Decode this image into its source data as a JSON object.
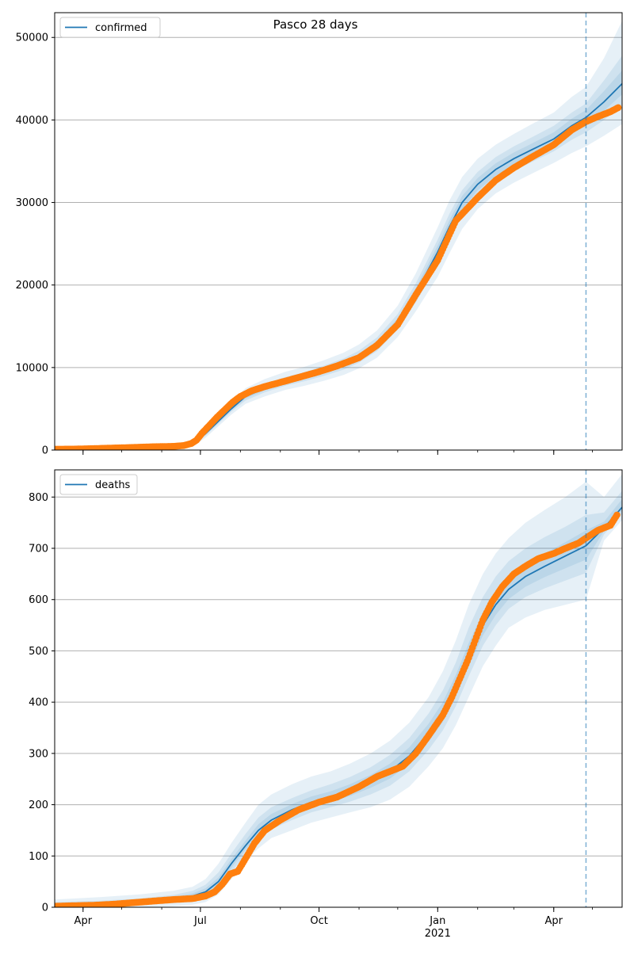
{
  "figure": {
    "title": "Pasco 28 days"
  },
  "colors": {
    "model": "#1f77b4",
    "observed": "#ff7f0e",
    "band": "#1f77b4",
    "grid": "#b0b0b0",
    "forecast_line": "#1f77b4"
  },
  "x_axis": {
    "range": [
      "2020-03-10",
      "2021-05-24"
    ],
    "major_ticks": [
      {
        "date": "2020-04-01",
        "label": "Apr",
        "sublabel": ""
      },
      {
        "date": "2020-07-01",
        "label": "Jul",
        "sublabel": ""
      },
      {
        "date": "2020-10-01",
        "label": "Oct",
        "sublabel": ""
      },
      {
        "date": "2021-01-01",
        "label": "Jan",
        "sublabel": "2021"
      },
      {
        "date": "2021-04-01",
        "label": "Apr",
        "sublabel": ""
      }
    ],
    "forecast_date": "2021-04-26"
  },
  "chart_data": [
    {
      "type": "line",
      "legend": "confirmed",
      "legend_position": "top-left",
      "grid": "y",
      "ylim": [
        0,
        53000
      ],
      "yticks": [
        0,
        10000,
        20000,
        30000,
        40000,
        50000
      ],
      "model": {
        "x": [
          "2020-03-10",
          "2020-04-15",
          "2020-05-15",
          "2020-06-10",
          "2020-06-20",
          "2020-06-26",
          "2020-07-05",
          "2020-07-15",
          "2020-07-25",
          "2020-08-05",
          "2020-08-20",
          "2020-09-05",
          "2020-09-20",
          "2020-10-05",
          "2020-10-20",
          "2020-11-01",
          "2020-11-15",
          "2020-12-01",
          "2020-12-15",
          "2021-01-01",
          "2021-01-10",
          "2021-01-20",
          "2021-02-01",
          "2021-02-15",
          "2021-03-01",
          "2021-03-15",
          "2021-04-01",
          "2021-04-15",
          "2021-04-26",
          "2021-05-10",
          "2021-05-24"
        ],
        "y": [
          100,
          180,
          300,
          400,
          500,
          800,
          2000,
          3500,
          5000,
          6500,
          7500,
          8300,
          8900,
          9600,
          10400,
          11300,
          12800,
          15500,
          19000,
          24000,
          27000,
          30000,
          32200,
          34000,
          35300,
          36400,
          37700,
          39300,
          40300,
          42200,
          44400
        ]
      },
      "bands": [
        {
          "name": "outer",
          "lower": [
            0,
            50,
            150,
            200,
            300,
            500,
            1500,
            2900,
            4300,
            5600,
            6500,
            7300,
            7800,
            8400,
            9100,
            9900,
            11200,
            13700,
            16800,
            21000,
            23800,
            26800,
            29200,
            31100,
            32400,
            33500,
            34800,
            36000,
            36800,
            38100,
            39500
          ],
          "upper": [
            400,
            500,
            600,
            700,
            800,
            1200,
            2600,
            4200,
            5800,
            7500,
            8600,
            9500,
            10100,
            10900,
            11800,
            12800,
            14500,
            17500,
            21400,
            27000,
            30200,
            33100,
            35300,
            37000,
            38300,
            39500,
            40900,
            42800,
            44000,
            47500,
            52000
          ]
        },
        {
          "name": "middle",
          "lower": [
            20,
            100,
            200,
            300,
            400,
            650,
            1750,
            3200,
            4650,
            6000,
            7000,
            7800,
            8350,
            9000,
            9750,
            10600,
            12000,
            14600,
            17900,
            22500,
            25400,
            28400,
            30700,
            32500,
            33800,
            34900,
            36200,
            37600,
            38500,
            40000,
            41800
          ],
          "upper": [
            250,
            330,
            450,
            550,
            650,
            1000,
            2300,
            3850,
            5400,
            7000,
            8050,
            8850,
            9450,
            10250,
            11100,
            12050,
            13650,
            16500,
            20200,
            25500,
            28600,
            31500,
            33700,
            35500,
            36800,
            37900,
            39300,
            40900,
            42000,
            44800,
            47800
          ]
        },
        {
          "name": "inner",
          "lower": [
            60,
            140,
            250,
            350,
            450,
            720,
            1870,
            3350,
            4820,
            6250,
            7250,
            8050,
            8620,
            9300,
            10070,
            10950,
            12400,
            15050,
            18450,
            23250,
            26200,
            29200,
            31450,
            33250,
            34550,
            35650,
            36950,
            38450,
            39400,
            41100,
            43100
          ],
          "upper": [
            150,
            230,
            360,
            460,
            560,
            900,
            2150,
            3680,
            5200,
            6750,
            7780,
            8570,
            9180,
            9920,
            10740,
            11650,
            13200,
            16000,
            19600,
            24800,
            27800,
            30800,
            32950,
            34750,
            36050,
            37150,
            38500,
            40150,
            41200,
            43500,
            46000
          ]
        }
      ],
      "observed": {
        "x": [
          "2020-03-10",
          "2020-03-25",
          "2020-04-10",
          "2020-04-25",
          "2020-05-10",
          "2020-05-25",
          "2020-06-10",
          "2020-06-18",
          "2020-06-24",
          "2020-06-28",
          "2020-07-02",
          "2020-07-08",
          "2020-07-14",
          "2020-07-20",
          "2020-07-26",
          "2020-08-01",
          "2020-08-10",
          "2020-08-20",
          "2020-09-01",
          "2020-09-15",
          "2020-10-01",
          "2020-10-15",
          "2020-11-01",
          "2020-11-15",
          "2020-12-01",
          "2020-12-15",
          "2021-01-01",
          "2021-01-15",
          "2021-02-01",
          "2021-02-15",
          "2021-03-01",
          "2021-03-15",
          "2021-04-01",
          "2021-04-15",
          "2021-04-26",
          "2021-05-05",
          "2021-05-15",
          "2021-05-21"
        ],
        "y": [
          100,
          120,
          180,
          250,
          320,
          400,
          450,
          550,
          800,
          1200,
          2000,
          3000,
          4000,
          4900,
          5800,
          6500,
          7200,
          7700,
          8200,
          8800,
          9500,
          10200,
          11200,
          12700,
          15200,
          18800,
          23000,
          27800,
          30600,
          32700,
          34200,
          35500,
          37000,
          38800,
          39800,
          40400,
          41000,
          41500
        ]
      }
    },
    {
      "type": "line",
      "legend": "deaths",
      "legend_position": "top-left",
      "grid": "y",
      "ylim": [
        0,
        853
      ],
      "yticks": [
        0,
        100,
        200,
        300,
        400,
        500,
        600,
        700,
        800
      ],
      "model": {
        "x": [
          "2020-03-10",
          "2020-04-15",
          "2020-05-15",
          "2020-06-10",
          "2020-06-25",
          "2020-07-05",
          "2020-07-15",
          "2020-07-25",
          "2020-08-05",
          "2020-08-15",
          "2020-08-25",
          "2020-09-10",
          "2020-09-25",
          "2020-10-10",
          "2020-10-25",
          "2020-11-10",
          "2020-11-25",
          "2020-12-10",
          "2020-12-25",
          "2021-01-05",
          "2021-01-15",
          "2021-01-25",
          "2021-02-05",
          "2021-02-15",
          "2021-02-25",
          "2021-03-10",
          "2021-03-25",
          "2021-04-10",
          "2021-04-26",
          "2021-05-10",
          "2021-05-24"
        ],
        "y": [
          2,
          5,
          10,
          16,
          22,
          30,
          50,
          85,
          120,
          150,
          170,
          190,
          205,
          215,
          228,
          245,
          265,
          295,
          340,
          380,
          430,
          490,
          550,
          590,
          620,
          645,
          665,
          685,
          705,
          740,
          780
        ]
      },
      "bands": [
        {
          "name": "outer",
          "lower": [
            0,
            0,
            0,
            2,
            5,
            10,
            25,
            55,
            90,
            115,
            135,
            150,
            165,
            175,
            185,
            195,
            210,
            235,
            275,
            310,
            355,
            410,
            470,
            510,
            545,
            565,
            580,
            590,
            600,
            715,
            755
          ],
          "upper": [
            15,
            20,
            25,
            32,
            40,
            55,
            85,
            125,
            165,
            200,
            220,
            240,
            255,
            265,
            280,
            300,
            325,
            360,
            410,
            460,
            520,
            590,
            650,
            690,
            720,
            750,
            775,
            800,
            830,
            800,
            845
          ]
        },
        {
          "name": "middle",
          "lower": [
            0,
            1,
            4,
            8,
            12,
            18,
            35,
            68,
            104,
            132,
            152,
            170,
            185,
            195,
            206,
            220,
            237,
            265,
            307,
            345,
            392,
            450,
            510,
            550,
            582,
            605,
            622,
            637,
            652,
            727,
            767
          ],
          "upper": [
            10,
            13,
            17,
            24,
            32,
            44,
            68,
            105,
            143,
            175,
            195,
            213,
            228,
            240,
            254,
            273,
            297,
            330,
            378,
            423,
            477,
            545,
            605,
            645,
            675,
            700,
            722,
            742,
            765,
            770,
            812
          ]
        },
        {
          "name": "inner",
          "lower": [
            1,
            3,
            7,
            12,
            17,
            24,
            43,
            77,
            112,
            141,
            161,
            180,
            195,
            205,
            217,
            233,
            251,
            280,
            323,
            362,
            411,
            470,
            530,
            570,
            601,
            625,
            644,
            661,
            678,
            734,
            774
          ],
          "upper": [
            5,
            8,
            13,
            20,
            27,
            37,
            58,
            94,
            130,
            162,
            182,
            201,
            216,
            226,
            240,
            258,
            280,
            312,
            358,
            400,
            453,
            515,
            575,
            615,
            645,
            670,
            690,
            712,
            735,
            752,
            796
          ]
        }
      ],
      "observed": {
        "x": [
          "2020-03-10",
          "2020-03-25",
          "2020-04-10",
          "2020-04-25",
          "2020-05-10",
          "2020-05-25",
          "2020-06-10",
          "2020-06-25",
          "2020-07-05",
          "2020-07-12",
          "2020-07-18",
          "2020-07-24",
          "2020-07-30",
          "2020-08-05",
          "2020-08-12",
          "2020-08-20",
          "2020-09-01",
          "2020-09-15",
          "2020-10-01",
          "2020-10-15",
          "2020-11-01",
          "2020-11-15",
          "2020-11-25",
          "2020-12-05",
          "2020-12-15",
          "2020-12-25",
          "2021-01-05",
          "2021-01-12",
          "2021-01-18",
          "2021-01-24",
          "2021-01-30",
          "2021-02-05",
          "2021-02-12",
          "2021-02-20",
          "2021-03-01",
          "2021-03-10",
          "2021-03-20",
          "2021-04-01",
          "2021-04-10",
          "2021-04-20",
          "2021-04-26",
          "2021-05-05",
          "2021-05-15",
          "2021-05-20"
        ],
        "y": [
          2,
          3,
          4,
          6,
          9,
          12,
          15,
          17,
          22,
          30,
          45,
          65,
          70,
          95,
          125,
          150,
          170,
          190,
          205,
          215,
          235,
          255,
          265,
          275,
          300,
          335,
          375,
          410,
          445,
          480,
          520,
          560,
          595,
          625,
          650,
          665,
          680,
          690,
          700,
          710,
          720,
          735,
          745,
          765
        ]
      }
    }
  ]
}
